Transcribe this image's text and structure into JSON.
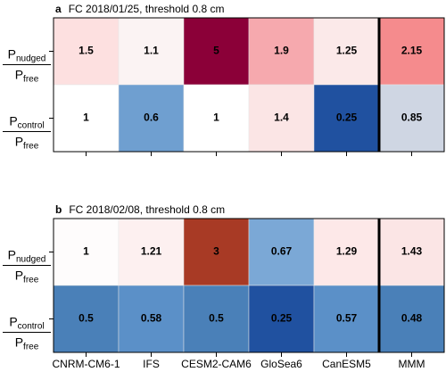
{
  "chart_data": [
    {
      "type": "heatmap",
      "panel": "a",
      "title": "FC 2018/01/25, threshold 0.8 cm",
      "rows": [
        {
          "numerator": {
            "symbol": "P",
            "subscript": "nudged"
          },
          "denominator": {
            "symbol": "P",
            "subscript": "free"
          }
        },
        {
          "numerator": {
            "symbol": "P",
            "subscript": "control"
          },
          "denominator": {
            "symbol": "P",
            "subscript": "free"
          }
        }
      ],
      "values": [
        [
          1.5,
          1.1,
          5,
          1.9,
          1.25,
          2.15
        ],
        [
          1,
          0.6,
          1,
          1.4,
          0.25,
          0.85
        ]
      ],
      "colors": [
        [
          "#fde0e0",
          "#fbf3f3",
          "#8b0038",
          "#f6a9ae",
          "#fbe9e9",
          "#f58b8d"
        ],
        [
          "#ffffff",
          "#6f9fd0",
          "#ffffff",
          "#fbe5e5",
          "#2051a0",
          "#cfd6e3"
        ]
      ]
    },
    {
      "type": "heatmap",
      "panel": "b",
      "title": "FC 2018/02/08, threshold 0.8 cm",
      "categories": [
        "CNRM-CM6-1",
        "IFS",
        "CESM2-CAM6",
        "GloSea6",
        "CanESM5",
        "MMM"
      ],
      "rows": [
        {
          "numerator": {
            "symbol": "P",
            "subscript": "nudged"
          },
          "denominator": {
            "symbol": "P",
            "subscript": "free"
          }
        },
        {
          "numerator": {
            "symbol": "P",
            "subscript": "control"
          },
          "denominator": {
            "symbol": "P",
            "subscript": "free"
          }
        }
      ],
      "values": [
        [
          1,
          1.21,
          3,
          0.67,
          1.29,
          1.43
        ],
        [
          0.5,
          0.58,
          0.5,
          0.25,
          0.57,
          0.48
        ]
      ],
      "colors": [
        [
          "#fefcfc",
          "#fdf0f0",
          "#a83a25",
          "#7ba8d6",
          "#fde8e8",
          "#fbe5e5"
        ],
        [
          "#4a80b8",
          "#5b90c8",
          "#4a80b8",
          "#2051a0",
          "#5b90c8",
          "#4a80b8"
        ]
      ]
    }
  ]
}
